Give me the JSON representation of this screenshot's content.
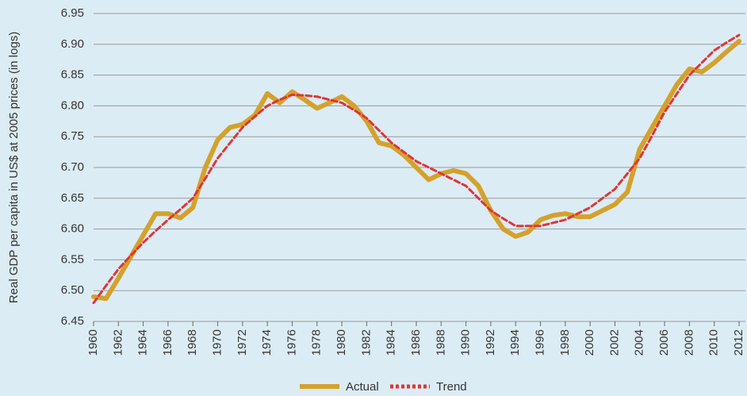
{
  "chart_data": {
    "type": "line",
    "y_label": "Real GDP per capita in US$ at 2005 prices (in logs)",
    "x": [
      1960,
      1961,
      1962,
      1963,
      1964,
      1965,
      1966,
      1967,
      1968,
      1969,
      1970,
      1971,
      1972,
      1973,
      1974,
      1975,
      1976,
      1977,
      1978,
      1979,
      1980,
      1981,
      1982,
      1983,
      1984,
      1985,
      1986,
      1987,
      1988,
      1989,
      1990,
      1991,
      1992,
      1993,
      1994,
      1995,
      1996,
      1997,
      1998,
      1999,
      2000,
      2001,
      2002,
      2003,
      2004,
      2005,
      2006,
      2007,
      2008,
      2009,
      2010,
      2011,
      2012
    ],
    "series": [
      {
        "name": "Actual",
        "color": "#d4a22b",
        "dashed": false,
        "values": [
          6.49,
          6.487,
          6.52,
          6.555,
          6.59,
          6.625,
          6.625,
          6.618,
          6.635,
          6.7,
          6.745,
          6.765,
          6.77,
          6.785,
          6.82,
          6.805,
          6.823,
          6.81,
          6.796,
          6.805,
          6.815,
          6.8,
          6.775,
          6.74,
          6.735,
          6.72,
          6.7,
          6.68,
          6.69,
          6.695,
          6.69,
          6.67,
          6.63,
          6.6,
          6.588,
          6.595,
          6.615,
          6.622,
          6.625,
          6.62,
          6.62,
          6.63,
          6.64,
          6.66,
          6.73,
          6.765,
          6.8,
          6.835,
          6.86,
          6.855,
          6.87,
          6.888,
          6.905
        ]
      },
      {
        "name": "Trend",
        "color": "#e03535",
        "dashed": true,
        "values": [
          6.48,
          6.508,
          6.535,
          6.557,
          6.578,
          6.597,
          6.615,
          6.632,
          6.65,
          6.682,
          6.715,
          6.74,
          6.765,
          6.783,
          6.8,
          6.81,
          6.818,
          6.817,
          6.815,
          6.81,
          6.805,
          6.793,
          6.78,
          6.76,
          6.74,
          6.725,
          6.71,
          6.7,
          6.69,
          6.68,
          6.67,
          6.65,
          6.63,
          6.617,
          6.605,
          6.605,
          6.605,
          6.61,
          6.615,
          6.625,
          6.635,
          6.65,
          6.665,
          6.69,
          6.715,
          6.752,
          6.79,
          6.82,
          6.85,
          6.87,
          6.89,
          6.903,
          6.915
        ]
      }
    ],
    "xlim": [
      1960,
      2012
    ],
    "xticks": [
      1960,
      1962,
      1964,
      1966,
      1968,
      1970,
      1972,
      1974,
      1976,
      1978,
      1980,
      1982,
      1984,
      1986,
      1988,
      1990,
      1992,
      1994,
      1996,
      1998,
      2000,
      2002,
      2004,
      2006,
      2008,
      2010,
      2012
    ],
    "ylim": [
      6.45,
      6.95
    ],
    "yticks": [
      6.45,
      {
        "value": 6.5,
        "label": "6.50"
      },
      6.55,
      {
        "value": 6.6,
        "label": "6.60"
      },
      6.65,
      {
        "value": 6.7,
        "label": "6.70"
      },
      6.75,
      {
        "value": 6.8,
        "label": "6.80"
      },
      6.85,
      {
        "value": 6.9,
        "label": "6.90"
      },
      6.95
    ],
    "grid": true
  }
}
